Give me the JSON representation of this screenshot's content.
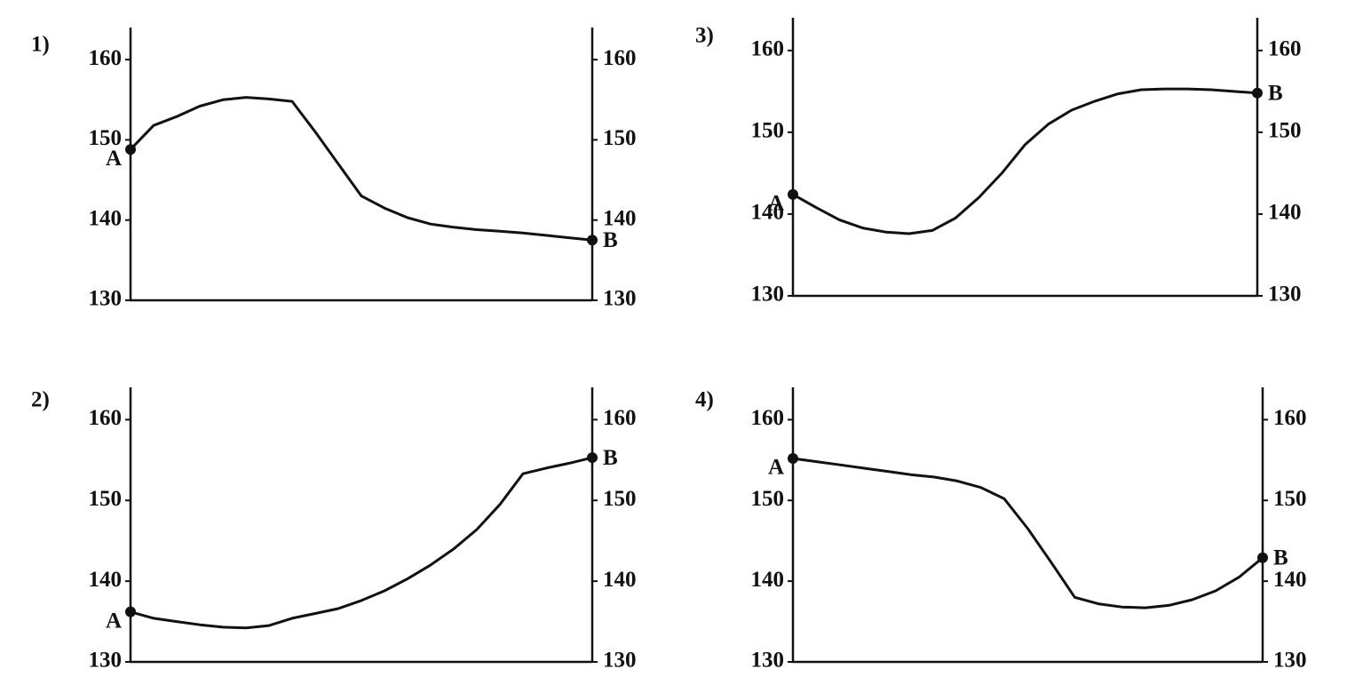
{
  "chart_data": [
    {
      "type": "line",
      "title": "1)",
      "categories": [
        null,
        null,
        null,
        null,
        null,
        null,
        null,
        null,
        null,
        null,
        null,
        null,
        null,
        null,
        null,
        null,
        null,
        null,
        null,
        null,
        null
      ],
      "series": [
        {
          "color": "#111111",
          "values": [
            148.8,
            151.8,
            152.9,
            154.2,
            155.0,
            155.3,
            155.1,
            154.8,
            151.0,
            147.0,
            143.0,
            141.5,
            140.3,
            139.5,
            139.1,
            138.8,
            138.6,
            138.4,
            138.1,
            137.8,
            137.5
          ]
        }
      ],
      "ylim": [
        130,
        164
      ],
      "yticks": [
        130,
        140,
        150,
        160
      ],
      "y2lim": [
        130,
        164
      ],
      "y2ticks": [
        130,
        140,
        150,
        160
      ],
      "start_label": "A",
      "end_label": "B",
      "grid": false
    },
    {
      "type": "line",
      "title": "2)",
      "categories": [
        null,
        null,
        null,
        null,
        null,
        null,
        null,
        null,
        null,
        null,
        null,
        null,
        null,
        null,
        null,
        null,
        null,
        null,
        null,
        null,
        null
      ],
      "series": [
        {
          "color": "#111111",
          "values": [
            136.2,
            135.4,
            135.0,
            134.6,
            134.3,
            134.2,
            134.5,
            135.4,
            136.0,
            136.6,
            137.6,
            138.8,
            140.3,
            142.0,
            144.0,
            146.4,
            149.5,
            153.3,
            154.0,
            154.6,
            155.3
          ]
        }
      ],
      "ylim": [
        130,
        164
      ],
      "yticks": [
        130,
        140,
        150,
        160
      ],
      "y2lim": [
        130,
        164
      ],
      "y2ticks": [
        130,
        140,
        150,
        160
      ],
      "start_label": "A",
      "end_label": "B",
      "grid": false
    },
    {
      "type": "line",
      "title": "3)",
      "categories": [
        null,
        null,
        null,
        null,
        null,
        null,
        null,
        null,
        null,
        null,
        null,
        null,
        null,
        null,
        null,
        null,
        null,
        null,
        null,
        null,
        null
      ],
      "series": [
        {
          "color": "#111111",
          "values": [
            142.4,
            140.8,
            139.3,
            138.3,
            137.8,
            137.6,
            138.0,
            139.5,
            142.0,
            145.0,
            148.5,
            151.0,
            152.7,
            153.8,
            154.7,
            155.2,
            155.3,
            155.3,
            155.2,
            155.0,
            154.8
          ]
        }
      ],
      "ylim": [
        130,
        164
      ],
      "yticks": [
        130,
        140,
        150,
        160
      ],
      "y2lim": [
        130,
        164
      ],
      "y2ticks": [
        130,
        140,
        150,
        160
      ],
      "start_label": "A",
      "end_label": "B",
      "grid": false
    },
    {
      "type": "line",
      "title": "4)",
      "categories": [
        null,
        null,
        null,
        null,
        null,
        null,
        null,
        null,
        null,
        null,
        null,
        null,
        null,
        null,
        null,
        null,
        null,
        null,
        null,
        null,
        null
      ],
      "series": [
        {
          "color": "#111111",
          "values": [
            155.2,
            154.8,
            154.4,
            154.0,
            153.6,
            153.2,
            152.9,
            152.4,
            151.6,
            150.2,
            146.5,
            142.3,
            138.0,
            137.2,
            136.8,
            136.7,
            137.0,
            137.7,
            138.8,
            140.5,
            142.9
          ]
        }
      ],
      "ylim": [
        130,
        164
      ],
      "yticks": [
        130,
        140,
        150,
        160
      ],
      "y2lim": [
        130,
        164
      ],
      "y2ticks": [
        130,
        140,
        150,
        160
      ],
      "start_label": "A",
      "end_label": "B",
      "grid": false
    }
  ]
}
